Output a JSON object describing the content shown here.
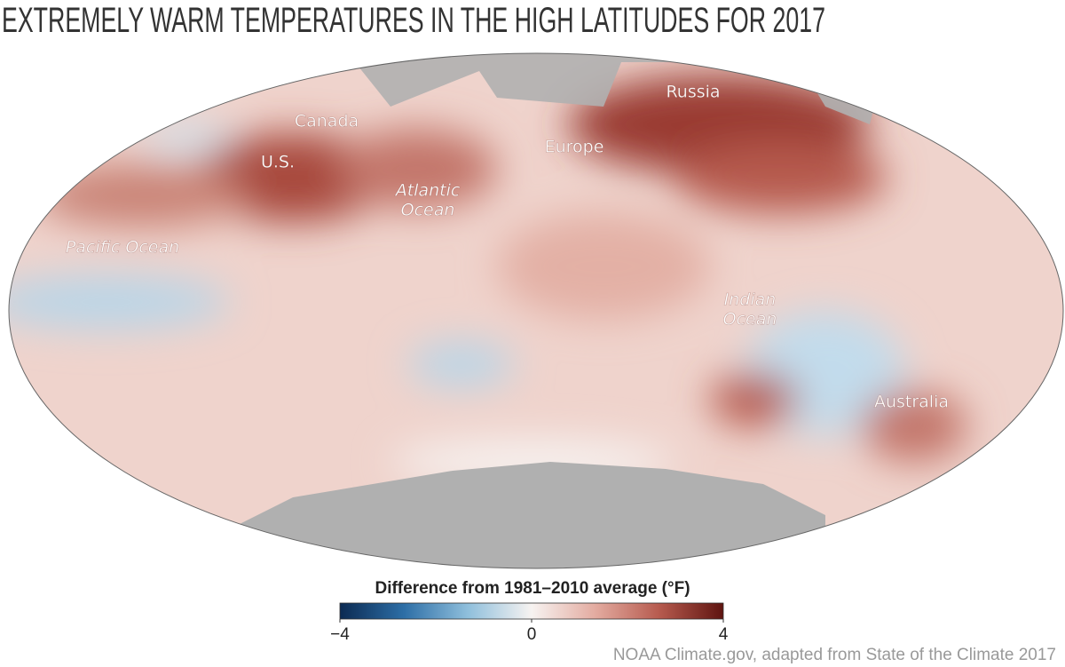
{
  "title": "EXTREMELY WARM TEMPERATURES IN THE HIGH LATITUDES FOR 2017",
  "map": {
    "labels": [
      {
        "lines": [
          "Canada"
        ],
        "italic": false
      },
      {
        "lines": [
          "U.S."
        ],
        "italic": false
      },
      {
        "lines": [
          "Europe"
        ],
        "italic": false
      },
      {
        "lines": [
          "Russia"
        ],
        "italic": false
      },
      {
        "lines": [
          "Atlantic",
          "Ocean"
        ],
        "italic": true
      },
      {
        "lines": [
          "Pacific Ocean"
        ],
        "italic": true
      },
      {
        "lines": [
          "Indian",
          "Ocean"
        ],
        "italic": true
      },
      {
        "lines": [
          "Australia"
        ],
        "italic": false
      }
    ]
  },
  "colorbar": {
    "title": "Difference from 1981–2010 average (°F)",
    "lim": [
      -4,
      4
    ],
    "ticks": [
      {
        "value": -4,
        "label": "−4"
      },
      0,
      4
    ],
    "colors": [
      "#0b2a52",
      "#2d6ea6",
      "#8fbfdc",
      "#f7f3f1",
      "#e3aba0",
      "#b65a4e",
      "#5e1410"
    ]
  },
  "credit": "NOAA Climate.gov, adapted from State of the Climate 2017"
}
